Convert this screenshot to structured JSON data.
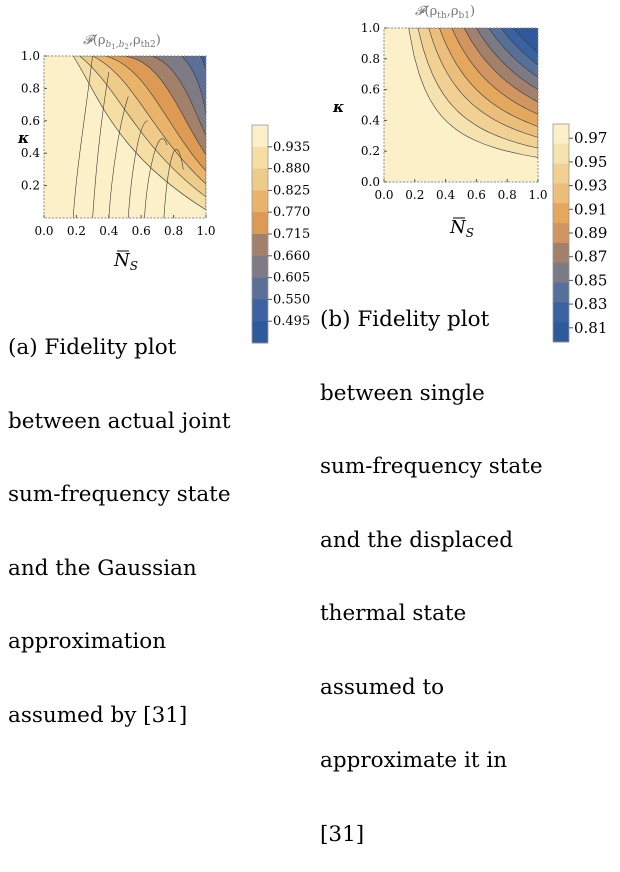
{
  "figure_a": {
    "title_F": "𝓕",
    "title_open": "(ρ",
    "title_sub1": "b",
    "title_sub1_sub": "1",
    "title_sub1_mid": ",b",
    "title_sub1_sub2": "2",
    "title_comma": ",ρ",
    "title_sub2": "th2",
    "title_close": ")",
    "ylabel": "κ",
    "xlabel_N": "N",
    "xlabel_sub": "S",
    "caption_lines": [
      "(a) Fidelity plot",
      "between actual joint",
      "sum-frequency state",
      "and the Gaussian",
      "approximation",
      "assumed by [31]"
    ]
  },
  "figure_b": {
    "title_F": "𝓕",
    "title_open": "(ρ",
    "title_sub1": "th",
    "title_comma": ",ρ",
    "title_sub2": "b1",
    "title_close": ")",
    "ylabel": "κ",
    "xlabel_N": "N",
    "xlabel_sub": "S",
    "caption_lines": [
      "(b) Fidelity plot",
      "between single",
      "sum-frequency state",
      "and the displaced",
      "thermal state",
      "assumed to",
      "approximate it in",
      "[31]"
    ]
  },
  "chart_data": [
    {
      "type": "heatmap",
      "title": "𝓕(ρb1,b2,ρth2)",
      "xlabel": "N̄S",
      "ylabel": "κ",
      "xlim": [
        0,
        1
      ],
      "ylim": [
        0,
        1
      ],
      "x_ticks": [
        "0.0",
        "0.2",
        "0.4",
        "0.6",
        "0.8",
        "1.0"
      ],
      "y_ticks": [
        "0.2",
        "0.4",
        "0.6",
        "0.8",
        "1.0"
      ],
      "colorbar_ticks": [
        "0.935",
        "0.880",
        "0.825",
        "0.770",
        "0.715",
        "0.660",
        "0.605",
        "0.550",
        "0.495"
      ],
      "colorbar_colors": [
        "#fbf0c8",
        "#f4dea4",
        "#eecb88",
        "#e9b46a",
        "#dc9a54",
        "#a3806a",
        "#7e7b85",
        "#5b6f97",
        "#3c62a1",
        "#2d5a9c"
      ]
    },
    {
      "type": "heatmap",
      "title": "𝓕(ρth,ρb1)",
      "xlabel": "N̄S",
      "ylabel": "κ",
      "xlim": [
        0,
        1
      ],
      "ylim": [
        0,
        1
      ],
      "x_ticks": [
        "0.0",
        "0.2",
        "0.4",
        "0.6",
        "0.8",
        "1.0"
      ],
      "y_ticks": [
        "0.0",
        "0.2",
        "0.4",
        "0.6",
        "0.8",
        "1.0"
      ],
      "colorbar_ticks": [
        "0.97",
        "0.95",
        "0.93",
        "0.91",
        "0.89",
        "0.87",
        "0.85",
        "0.83",
        "0.81"
      ],
      "colorbar_colors": [
        "#fbf0c8",
        "#f6e2ae",
        "#f0d093",
        "#ebbe7c",
        "#e3a85e",
        "#d09560",
        "#a1806c",
        "#7c7a84",
        "#56709a",
        "#3a62a1",
        "#2e5a9c"
      ]
    }
  ]
}
